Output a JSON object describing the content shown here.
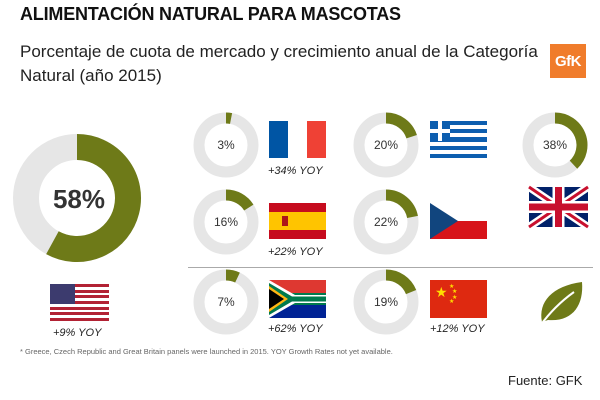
{
  "header": {
    "title": "ALIMENTACIÓN NATURAL PARA MASCOTAS",
    "subtitle": "Porcentaje de cuota de mercado y crecimiento anual de la Categoría Natural (año 2015)",
    "logo_text": "GfK"
  },
  "colors": {
    "accent": "#6e7a18",
    "track": "#e6e6e6",
    "logo": "#f07c2b"
  },
  "chart_data": {
    "type": "donut",
    "title": "ALIMENTACIÓN NATURAL PARA MASCOTAS",
    "subtitle": "Porcentaje de cuota de mercado y crecimiento anual de la Categoría Natural (año 2015)",
    "unit": "%",
    "series": [
      {
        "country": "United States",
        "flag": "us-flag",
        "share": 58,
        "label": "58%",
        "yoy": "+9% YOY"
      },
      {
        "country": "France",
        "flag": "france-flag",
        "share": 3,
        "label": "3%",
        "yoy": "+34% YOY"
      },
      {
        "country": "Spain",
        "flag": "spain-flag",
        "share": 16,
        "label": "16%",
        "yoy": "+22% YOY"
      },
      {
        "country": "South Africa",
        "flag": "south-africa-flag",
        "share": 7,
        "label": "7%",
        "yoy": "+62% YOY"
      },
      {
        "country": "Greece",
        "flag": "greece-flag",
        "share": 20,
        "label": "20%",
        "yoy": ""
      },
      {
        "country": "Czech Republic",
        "flag": "czech-flag",
        "share": 22,
        "label": "22%",
        "yoy": ""
      },
      {
        "country": "China",
        "flag": "china-flag",
        "share": 19,
        "label": "19%",
        "yoy": "+12% YOY"
      },
      {
        "country": "Great Britain",
        "flag": "uk-flag",
        "share": 38,
        "label": "38%",
        "yoy": ""
      }
    ]
  },
  "footnote": "* Greece, Czech Republic and Great Britain panels were launched in 2015. YOY Growth Rates not yet available.",
  "source": "Fuente: GFK"
}
